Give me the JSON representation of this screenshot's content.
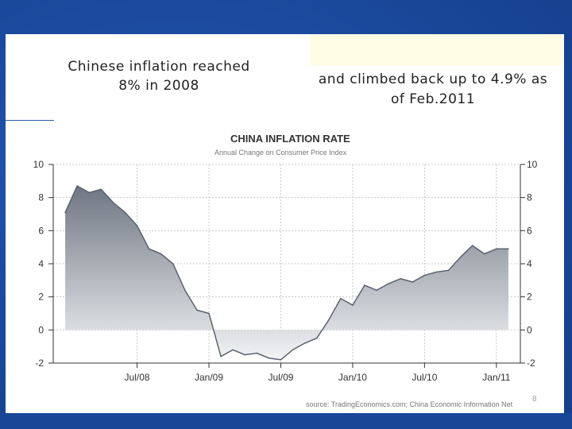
{
  "slide": {
    "left_caption": "Chinese inflation reached 8% in 2008",
    "right_caption": "and climbed back up to 4.9% as of Feb.2011",
    "page_number": "8"
  },
  "chart_data": {
    "type": "area",
    "title": "CHINA INFLATION RATE",
    "subtitle": "Annual Change on Consumer Price Index",
    "source": "source: TradingEconomics.com; China Economic Information Net",
    "ylim": [
      -2,
      10
    ],
    "y_ticks": [
      10,
      8,
      6,
      4,
      2,
      0,
      -2
    ],
    "x_ticks": [
      "Jul/08",
      "Jan/09",
      "Jul/09",
      "Jan/10",
      "Jul/10",
      "Jan/11"
    ],
    "x": [
      "2008-01",
      "2008-02",
      "2008-03",
      "2008-04",
      "2008-05",
      "2008-06",
      "2008-07",
      "2008-08",
      "2008-09",
      "2008-10",
      "2008-11",
      "2008-12",
      "2009-01",
      "2009-02",
      "2009-03",
      "2009-04",
      "2009-05",
      "2009-06",
      "2009-07",
      "2009-08",
      "2009-09",
      "2009-10",
      "2009-11",
      "2009-12",
      "2010-01",
      "2010-02",
      "2010-03",
      "2010-04",
      "2010-05",
      "2010-06",
      "2010-07",
      "2010-08",
      "2010-09",
      "2010-10",
      "2010-11",
      "2010-12",
      "2011-01",
      "2011-02"
    ],
    "values": [
      7.1,
      8.7,
      8.3,
      8.5,
      7.7,
      7.1,
      6.3,
      4.9,
      4.6,
      4.0,
      2.4,
      1.2,
      1.0,
      -1.6,
      -1.2,
      -1.5,
      -1.4,
      -1.7,
      -1.8,
      -1.2,
      -0.8,
      -0.5,
      0.6,
      1.9,
      1.5,
      2.7,
      2.4,
      2.8,
      3.1,
      2.9,
      3.3,
      3.5,
      3.6,
      4.4,
      5.1,
      4.6,
      4.9,
      4.9
    ],
    "grid": true,
    "colors": {
      "area_top": "#6e7682",
      "area_bottom": "#f2f3f5",
      "line": "#5a6270",
      "grid": "#c8c8c8",
      "axis": "#333333"
    }
  }
}
